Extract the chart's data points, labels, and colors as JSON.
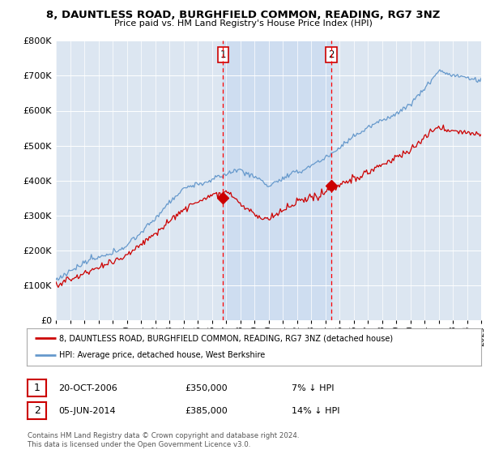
{
  "title": "8, DAUNTLESS ROAD, BURGHFIELD COMMON, READING, RG7 3NZ",
  "subtitle": "Price paid vs. HM Land Registry's House Price Index (HPI)",
  "legend_line1": "8, DAUNTLESS ROAD, BURGHFIELD COMMON, READING, RG7 3NZ (detached house)",
  "legend_line2": "HPI: Average price, detached house, West Berkshire",
  "annotation1_date": "20-OCT-2006",
  "annotation1_price": "£350,000",
  "annotation1_hpi": "7% ↓ HPI",
  "annotation2_date": "05-JUN-2014",
  "annotation2_price": "£385,000",
  "annotation2_hpi": "14% ↓ HPI",
  "footer": "Contains HM Land Registry data © Crown copyright and database right 2024.\nThis data is licensed under the Open Government Licence v3.0.",
  "sale1_x": 2006.79,
  "sale1_y": 350000,
  "sale2_x": 2014.42,
  "sale2_y": 385000,
  "hpi_color": "#6699cc",
  "price_color": "#cc0000",
  "background_color": "#dce6f1",
  "ylim": [
    0,
    800000
  ],
  "xlim_start": 1995,
  "xlim_end": 2025,
  "title_fontsize": 9.5,
  "subtitle_fontsize": 8
}
